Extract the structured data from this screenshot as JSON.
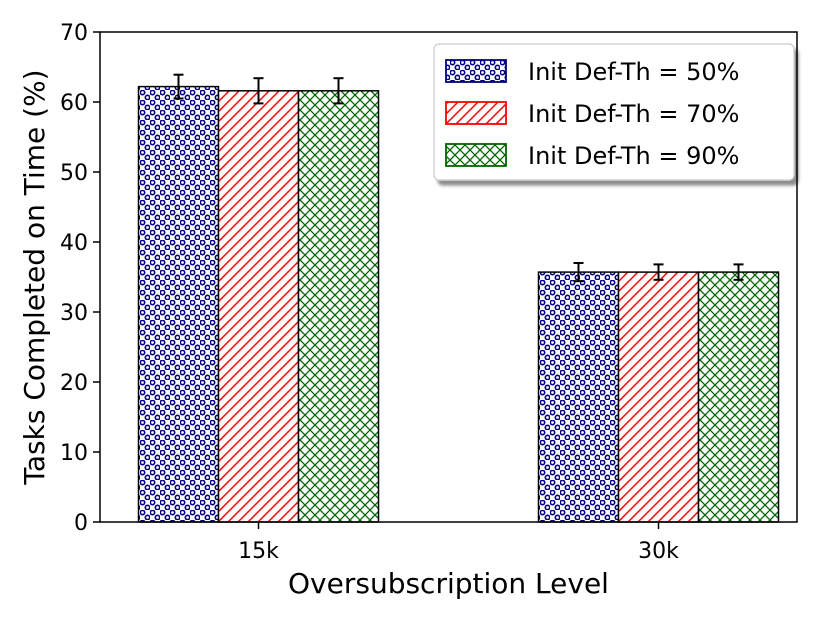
{
  "chart_data": {
    "type": "bar",
    "title": "",
    "xlabel": "Oversubscription Level",
    "ylabel": "Tasks Completed on Time (%)",
    "categories": [
      "15k",
      "30k"
    ],
    "ylim": [
      0,
      70
    ],
    "yticks": [
      0,
      10,
      20,
      30,
      40,
      50,
      60,
      70
    ],
    "grid": false,
    "legend_position": "top-right",
    "series": [
      {
        "name": "Init Def-Th = 50%",
        "values": [
          62.2,
          35.7
        ],
        "errors": [
          1.7,
          1.3
        ],
        "color": "#00007f",
        "hatch": "dots"
      },
      {
        "name": "Init Def-Th = 70%",
        "values": [
          61.6,
          35.7
        ],
        "errors": [
          1.8,
          1.1
        ],
        "color": "#ff0000",
        "hatch": "diagonal"
      },
      {
        "name": "Init Def-Th = 90%",
        "values": [
          61.6,
          35.7
        ],
        "errors": [
          1.8,
          1.1
        ],
        "color": "#006400",
        "hatch": "crosshatch"
      }
    ]
  }
}
